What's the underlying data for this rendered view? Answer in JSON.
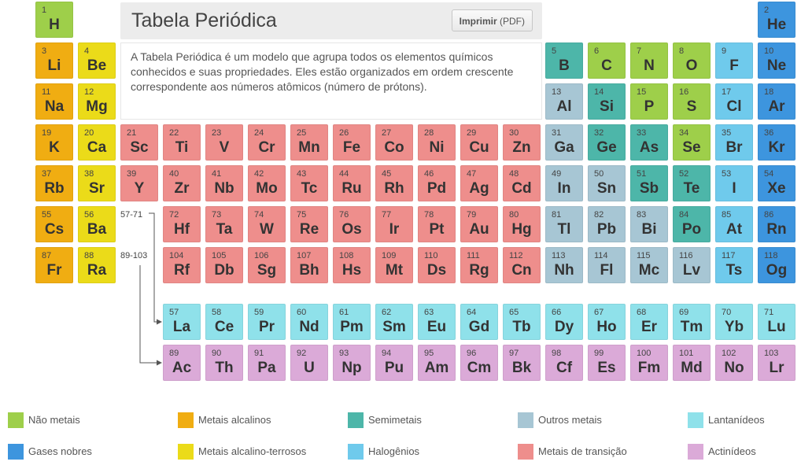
{
  "header": {
    "title": "Tabela Periódica",
    "print_label": "Imprimir",
    "print_suffix": "(PDF)",
    "description": "A Tabela Periódica é um modelo que agrupa todos os elementos químicos conhecidos e suas propriedades. Eles estão organizados em ordem crescente correspondente aos números atômicos (número de prótons)."
  },
  "range_labels": {
    "lanthanides": "57-71",
    "actinides": "89-103"
  },
  "colors": {
    "nonmetal": "#9ecf4a",
    "alkali": "#f0ad12",
    "metalloid": "#4db6a9",
    "other": "#a7c6d4",
    "lanthanide": "#8fe1ea",
    "noble": "#3d95de",
    "alkaline": "#ebdb19",
    "halogen": "#6fcaec",
    "transition": "#ee8e8c",
    "actinide": "#dbaad8"
  },
  "legend": [
    {
      "key": "nonmetal",
      "label": "Não metais"
    },
    {
      "key": "alkali",
      "label": "Metais alcalinos"
    },
    {
      "key": "metalloid",
      "label": "Semimetais"
    },
    {
      "key": "other",
      "label": "Outros metais"
    },
    {
      "key": "lanthanide",
      "label": "Lantanídeos"
    },
    {
      "key": "noble",
      "label": "Gases nobres"
    },
    {
      "key": "alkaline",
      "label": "Metais alcalino-terrosos"
    },
    {
      "key": "halogen",
      "label": "Halogênios"
    },
    {
      "key": "transition",
      "label": "Metais de transição"
    },
    {
      "key": "actinide",
      "label": "Actinídeos"
    }
  ],
  "elements": [
    {
      "n": 1,
      "s": "H",
      "c": "nonmetal",
      "p": 1,
      "g": 1
    },
    {
      "n": 2,
      "s": "He",
      "c": "noble",
      "p": 1,
      "g": 18
    },
    {
      "n": 3,
      "s": "Li",
      "c": "alkali",
      "p": 2,
      "g": 1
    },
    {
      "n": 4,
      "s": "Be",
      "c": "alkaline",
      "p": 2,
      "g": 2
    },
    {
      "n": 5,
      "s": "B",
      "c": "metalloid",
      "p": 2,
      "g": 13
    },
    {
      "n": 6,
      "s": "C",
      "c": "nonmetal",
      "p": 2,
      "g": 14
    },
    {
      "n": 7,
      "s": "N",
      "c": "nonmetal",
      "p": 2,
      "g": 15
    },
    {
      "n": 8,
      "s": "O",
      "c": "nonmetal",
      "p": 2,
      "g": 16
    },
    {
      "n": 9,
      "s": "F",
      "c": "halogen",
      "p": 2,
      "g": 17
    },
    {
      "n": 10,
      "s": "Ne",
      "c": "noble",
      "p": 2,
      "g": 18
    },
    {
      "n": 11,
      "s": "Na",
      "c": "alkali",
      "p": 3,
      "g": 1
    },
    {
      "n": 12,
      "s": "Mg",
      "c": "alkaline",
      "p": 3,
      "g": 2
    },
    {
      "n": 13,
      "s": "Al",
      "c": "other",
      "p": 3,
      "g": 13
    },
    {
      "n": 14,
      "s": "Si",
      "c": "metalloid",
      "p": 3,
      "g": 14
    },
    {
      "n": 15,
      "s": "P",
      "c": "nonmetal",
      "p": 3,
      "g": 15
    },
    {
      "n": 16,
      "s": "S",
      "c": "nonmetal",
      "p": 3,
      "g": 16
    },
    {
      "n": 17,
      "s": "Cl",
      "c": "halogen",
      "p": 3,
      "g": 17
    },
    {
      "n": 18,
      "s": "Ar",
      "c": "noble",
      "p": 3,
      "g": 18
    },
    {
      "n": 19,
      "s": "K",
      "c": "alkali",
      "p": 4,
      "g": 1
    },
    {
      "n": 20,
      "s": "Ca",
      "c": "alkaline",
      "p": 4,
      "g": 2
    },
    {
      "n": 21,
      "s": "Sc",
      "c": "transition",
      "p": 4,
      "g": 3
    },
    {
      "n": 22,
      "s": "Ti",
      "c": "transition",
      "p": 4,
      "g": 4
    },
    {
      "n": 23,
      "s": "V",
      "c": "transition",
      "p": 4,
      "g": 5
    },
    {
      "n": 24,
      "s": "Cr",
      "c": "transition",
      "p": 4,
      "g": 6
    },
    {
      "n": 25,
      "s": "Mn",
      "c": "transition",
      "p": 4,
      "g": 7
    },
    {
      "n": 26,
      "s": "Fe",
      "c": "transition",
      "p": 4,
      "g": 8
    },
    {
      "n": 27,
      "s": "Co",
      "c": "transition",
      "p": 4,
      "g": 9
    },
    {
      "n": 28,
      "s": "Ni",
      "c": "transition",
      "p": 4,
      "g": 10
    },
    {
      "n": 29,
      "s": "Cu",
      "c": "transition",
      "p": 4,
      "g": 11
    },
    {
      "n": 30,
      "s": "Zn",
      "c": "transition",
      "p": 4,
      "g": 12
    },
    {
      "n": 31,
      "s": "Ga",
      "c": "other",
      "p": 4,
      "g": 13
    },
    {
      "n": 32,
      "s": "Ge",
      "c": "metalloid",
      "p": 4,
      "g": 14
    },
    {
      "n": 33,
      "s": "As",
      "c": "metalloid",
      "p": 4,
      "g": 15
    },
    {
      "n": 34,
      "s": "Se",
      "c": "nonmetal",
      "p": 4,
      "g": 16
    },
    {
      "n": 35,
      "s": "Br",
      "c": "halogen",
      "p": 4,
      "g": 17
    },
    {
      "n": 36,
      "s": "Kr",
      "c": "noble",
      "p": 4,
      "g": 18
    },
    {
      "n": 37,
      "s": "Rb",
      "c": "alkali",
      "p": 5,
      "g": 1
    },
    {
      "n": 38,
      "s": "Sr",
      "c": "alkaline",
      "p": 5,
      "g": 2
    },
    {
      "n": 39,
      "s": "Y",
      "c": "transition",
      "p": 5,
      "g": 3
    },
    {
      "n": 40,
      "s": "Zr",
      "c": "transition",
      "p": 5,
      "g": 4
    },
    {
      "n": 41,
      "s": "Nb",
      "c": "transition",
      "p": 5,
      "g": 5
    },
    {
      "n": 42,
      "s": "Mo",
      "c": "transition",
      "p": 5,
      "g": 6
    },
    {
      "n": 43,
      "s": "Tc",
      "c": "transition",
      "p": 5,
      "g": 7
    },
    {
      "n": 44,
      "s": "Ru",
      "c": "transition",
      "p": 5,
      "g": 8
    },
    {
      "n": 45,
      "s": "Rh",
      "c": "transition",
      "p": 5,
      "g": 9
    },
    {
      "n": 46,
      "s": "Pd",
      "c": "transition",
      "p": 5,
      "g": 10
    },
    {
      "n": 47,
      "s": "Ag",
      "c": "transition",
      "p": 5,
      "g": 11
    },
    {
      "n": 48,
      "s": "Cd",
      "c": "transition",
      "p": 5,
      "g": 12
    },
    {
      "n": 49,
      "s": "In",
      "c": "other",
      "p": 5,
      "g": 13
    },
    {
      "n": 50,
      "s": "Sn",
      "c": "other",
      "p": 5,
      "g": 14
    },
    {
      "n": 51,
      "s": "Sb",
      "c": "metalloid",
      "p": 5,
      "g": 15
    },
    {
      "n": 52,
      "s": "Te",
      "c": "metalloid",
      "p": 5,
      "g": 16
    },
    {
      "n": 53,
      "s": "I",
      "c": "halogen",
      "p": 5,
      "g": 17
    },
    {
      "n": 54,
      "s": "Xe",
      "c": "noble",
      "p": 5,
      "g": 18
    },
    {
      "n": 55,
      "s": "Cs",
      "c": "alkali",
      "p": 6,
      "g": 1
    },
    {
      "n": 56,
      "s": "Ba",
      "c": "alkaline",
      "p": 6,
      "g": 2
    },
    {
      "n": 72,
      "s": "Hf",
      "c": "transition",
      "p": 6,
      "g": 4
    },
    {
      "n": 73,
      "s": "Ta",
      "c": "transition",
      "p": 6,
      "g": 5
    },
    {
      "n": 74,
      "s": "W",
      "c": "transition",
      "p": 6,
      "g": 6
    },
    {
      "n": 75,
      "s": "Re",
      "c": "transition",
      "p": 6,
      "g": 7
    },
    {
      "n": 76,
      "s": "Os",
      "c": "transition",
      "p": 6,
      "g": 8
    },
    {
      "n": 77,
      "s": "Ir",
      "c": "transition",
      "p": 6,
      "g": 9
    },
    {
      "n": 78,
      "s": "Pt",
      "c": "transition",
      "p": 6,
      "g": 10
    },
    {
      "n": 79,
      "s": "Au",
      "c": "transition",
      "p": 6,
      "g": 11
    },
    {
      "n": 80,
      "s": "Hg",
      "c": "transition",
      "p": 6,
      "g": 12
    },
    {
      "n": 81,
      "s": "Tl",
      "c": "other",
      "p": 6,
      "g": 13
    },
    {
      "n": 82,
      "s": "Pb",
      "c": "other",
      "p": 6,
      "g": 14
    },
    {
      "n": 83,
      "s": "Bi",
      "c": "other",
      "p": 6,
      "g": 15
    },
    {
      "n": 84,
      "s": "Po",
      "c": "metalloid",
      "p": 6,
      "g": 16
    },
    {
      "n": 85,
      "s": "At",
      "c": "halogen",
      "p": 6,
      "g": 17
    },
    {
      "n": 86,
      "s": "Rn",
      "c": "noble",
      "p": 6,
      "g": 18
    },
    {
      "n": 87,
      "s": "Fr",
      "c": "alkali",
      "p": 7,
      "g": 1
    },
    {
      "n": 88,
      "s": "Ra",
      "c": "alkaline",
      "p": 7,
      "g": 2
    },
    {
      "n": 104,
      "s": "Rf",
      "c": "transition",
      "p": 7,
      "g": 4
    },
    {
      "n": 105,
      "s": "Db",
      "c": "transition",
      "p": 7,
      "g": 5
    },
    {
      "n": 106,
      "s": "Sg",
      "c": "transition",
      "p": 7,
      "g": 6
    },
    {
      "n": 107,
      "s": "Bh",
      "c": "transition",
      "p": 7,
      "g": 7
    },
    {
      "n": 108,
      "s": "Hs",
      "c": "transition",
      "p": 7,
      "g": 8
    },
    {
      "n": 109,
      "s": "Mt",
      "c": "transition",
      "p": 7,
      "g": 9
    },
    {
      "n": 110,
      "s": "Ds",
      "c": "transition",
      "p": 7,
      "g": 10
    },
    {
      "n": 111,
      "s": "Rg",
      "c": "transition",
      "p": 7,
      "g": 11
    },
    {
      "n": 112,
      "s": "Cn",
      "c": "transition",
      "p": 7,
      "g": 12
    },
    {
      "n": 113,
      "s": "Nh",
      "c": "other",
      "p": 7,
      "g": 13
    },
    {
      "n": 114,
      "s": "Fl",
      "c": "other",
      "p": 7,
      "g": 14
    },
    {
      "n": 115,
      "s": "Mc",
      "c": "other",
      "p": 7,
      "g": 15
    },
    {
      "n": 116,
      "s": "Lv",
      "c": "other",
      "p": 7,
      "g": 16
    },
    {
      "n": 117,
      "s": "Ts",
      "c": "halogen",
      "p": 7,
      "g": 17
    },
    {
      "n": 118,
      "s": "Og",
      "c": "noble",
      "p": 7,
      "g": 18
    },
    {
      "n": 57,
      "s": "La",
      "c": "lanthanide",
      "p": 8,
      "g": 4
    },
    {
      "n": 58,
      "s": "Ce",
      "c": "lanthanide",
      "p": 8,
      "g": 5
    },
    {
      "n": 59,
      "s": "Pr",
      "c": "lanthanide",
      "p": 8,
      "g": 6
    },
    {
      "n": 60,
      "s": "Nd",
      "c": "lanthanide",
      "p": 8,
      "g": 7
    },
    {
      "n": 61,
      "s": "Pm",
      "c": "lanthanide",
      "p": 8,
      "g": 8
    },
    {
      "n": 62,
      "s": "Sm",
      "c": "lanthanide",
      "p": 8,
      "g": 9
    },
    {
      "n": 63,
      "s": "Eu",
      "c": "lanthanide",
      "p": 8,
      "g": 10
    },
    {
      "n": 64,
      "s": "Gd",
      "c": "lanthanide",
      "p": 8,
      "g": 11
    },
    {
      "n": 65,
      "s": "Tb",
      "c": "lanthanide",
      "p": 8,
      "g": 12
    },
    {
      "n": 66,
      "s": "Dy",
      "c": "lanthanide",
      "p": 8,
      "g": 13
    },
    {
      "n": 67,
      "s": "Ho",
      "c": "lanthanide",
      "p": 8,
      "g": 14
    },
    {
      "n": 68,
      "s": "Er",
      "c": "lanthanide",
      "p": 8,
      "g": 15
    },
    {
      "n": 69,
      "s": "Tm",
      "c": "lanthanide",
      "p": 8,
      "g": 16
    },
    {
      "n": 70,
      "s": "Yb",
      "c": "lanthanide",
      "p": 8,
      "g": 17
    },
    {
      "n": 71,
      "s": "Lu",
      "c": "lanthanide",
      "p": 8,
      "g": 18
    },
    {
      "n": 89,
      "s": "Ac",
      "c": "actinide",
      "p": 9,
      "g": 4
    },
    {
      "n": 90,
      "s": "Th",
      "c": "actinide",
      "p": 9,
      "g": 5
    },
    {
      "n": 91,
      "s": "Pa",
      "c": "actinide",
      "p": 9,
      "g": 6
    },
    {
      "n": 92,
      "s": "U",
      "c": "actinide",
      "p": 9,
      "g": 7
    },
    {
      "n": 93,
      "s": "Np",
      "c": "actinide",
      "p": 9,
      "g": 8
    },
    {
      "n": 94,
      "s": "Pu",
      "c": "actinide",
      "p": 9,
      "g": 9
    },
    {
      "n": 95,
      "s": "Am",
      "c": "actinide",
      "p": 9,
      "g": 10
    },
    {
      "n": 96,
      "s": "Cm",
      "c": "actinide",
      "p": 9,
      "g": 11
    },
    {
      "n": 97,
      "s": "Bk",
      "c": "actinide",
      "p": 9,
      "g": 12
    },
    {
      "n": 98,
      "s": "Cf",
      "c": "actinide",
      "p": 9,
      "g": 13
    },
    {
      "n": 99,
      "s": "Es",
      "c": "actinide",
      "p": 9,
      "g": 14
    },
    {
      "n": 100,
      "s": "Fm",
      "c": "actinide",
      "p": 9,
      "g": 15
    },
    {
      "n": 101,
      "s": "Md",
      "c": "actinide",
      "p": 9,
      "g": 16
    },
    {
      "n": 102,
      "s": "No",
      "c": "actinide",
      "p": 9,
      "g": 17
    },
    {
      "n": 103,
      "s": "Lr",
      "c": "actinide",
      "p": 9,
      "g": 18
    }
  ]
}
